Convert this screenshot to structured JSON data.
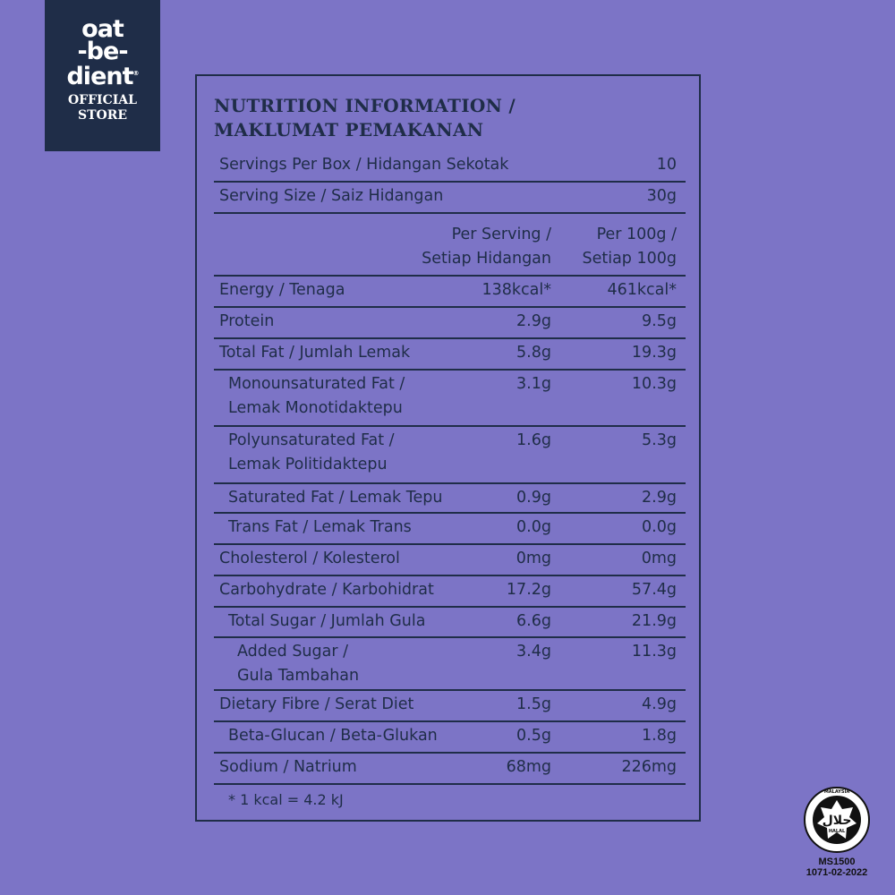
{
  "brand": {
    "name_lines": [
      "oat",
      "-be-",
      "dient"
    ],
    "registered": "®",
    "store_lines": [
      "OFFICIAL",
      "STORE"
    ]
  },
  "title_lines": [
    "NUTRITION INFORMATION /",
    "MAKLUMAT PEMAKANAN"
  ],
  "servings": {
    "label": "Servings Per Box / Hidangan Sekotak",
    "value": "10"
  },
  "serving_size": {
    "label": "Serving Size / Saiz Hidangan",
    "value": "30g"
  },
  "columns": {
    "per_serving": "Per Serving /\nSetiap Hidangan",
    "per_100g": "Per 100g /\nSetiap 100g"
  },
  "rows": [
    {
      "label": "Energy / Tenaga",
      "per_serving": "138kcal*",
      "per_100g": "461kcal*"
    },
    {
      "label": "Protein",
      "per_serving": "2.9g",
      "per_100g": "9.5g"
    },
    {
      "label": "Total Fat / Jumlah Lemak",
      "per_serving": "5.8g",
      "per_100g": "19.3g"
    },
    {
      "label": "Monounsaturated Fat /\nLemak Monotidaktepu",
      "per_serving": "3.1g",
      "per_100g": "10.3g"
    },
    {
      "label": "Polyunsaturated Fat /\nLemak Politidaktepu",
      "per_serving": "1.6g",
      "per_100g": "5.3g"
    },
    {
      "label": "Saturated Fat / Lemak Tepu",
      "per_serving": "0.9g",
      "per_100g": "2.9g"
    },
    {
      "label": "Trans Fat / Lemak Trans",
      "per_serving": "0.0g",
      "per_100g": "0.0g"
    },
    {
      "label": "Cholesterol / Kolesterol",
      "per_serving": "0mg",
      "per_100g": "0mg"
    },
    {
      "label": "Carbohydrate / Karbohidrat",
      "per_serving": "17.2g",
      "per_100g": "57.4g"
    },
    {
      "label": "Total Sugar / Jumlah Gula",
      "per_serving": "6.6g",
      "per_100g": "21.9g"
    },
    {
      "label": "Added Sugar /\nGula Tambahan",
      "per_serving": "3.4g",
      "per_100g": "11.3g"
    },
    {
      "label": "Dietary Fibre / Serat Diet",
      "per_serving": "1.5g",
      "per_100g": "4.9g"
    },
    {
      "label": "Beta-Glucan / Beta-Glukan",
      "per_serving": "0.5g",
      "per_100g": "1.8g"
    },
    {
      "label": "Sodium / Natrium",
      "per_serving": "68mg",
      "per_100g": "226mg"
    }
  ],
  "footnote": "* 1 kcal = 4.2 kJ",
  "halal": {
    "arabic": "حلال",
    "ring_text": "MALAYSIA",
    "inner": "HALAL",
    "code1": "MS1500",
    "code2": "1071-02-2022"
  }
}
